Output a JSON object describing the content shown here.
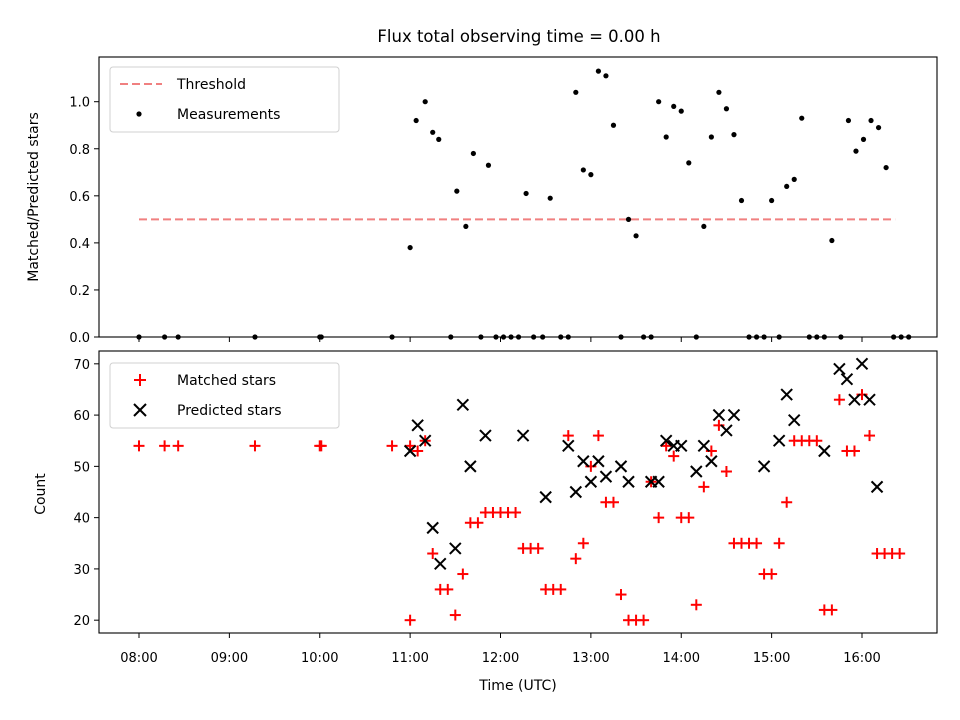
{
  "chart_data": [
    {
      "type": "scatter",
      "title": "Flux total observing time = 0.00 h",
      "xlabel": "",
      "ylabel": "Matched/Predicted stars",
      "xlim": [
        "07:44",
        "16:30"
      ],
      "ylim": [
        0,
        1.19
      ],
      "yticks": [
        "0.0",
        "0.2",
        "0.4",
        "0.6",
        "0.8",
        "1.0"
      ],
      "grid": false,
      "legend_position": "upper-left",
      "threshold": {
        "name": "Threshold",
        "value": 0.5,
        "x_start": "08:00",
        "x_end": "16:22",
        "color": "#f08080",
        "style": "dashed"
      },
      "series": [
        {
          "name": "Measurements",
          "marker": "dot",
          "color": "#000000",
          "points": [
            [
              "08:00",
              0
            ],
            [
              "08:17",
              0
            ],
            [
              "08:26",
              0
            ],
            [
              "09:17",
              0
            ],
            [
              "10:00",
              0
            ],
            [
              "10:01",
              0
            ],
            [
              "10:48",
              0
            ],
            [
              "11:00",
              0.38
            ],
            [
              "11:04",
              0.92
            ],
            [
              "11:10",
              1.0
            ],
            [
              "11:15",
              0.87
            ],
            [
              "11:19",
              0.84
            ],
            [
              "11:27",
              0
            ],
            [
              "11:31",
              0.62
            ],
            [
              "11:37",
              0.47
            ],
            [
              "11:42",
              0.78
            ],
            [
              "11:47",
              0
            ],
            [
              "11:52",
              0.73
            ],
            [
              "11:57",
              0
            ],
            [
              "12:02",
              0
            ],
            [
              "12:07",
              0
            ],
            [
              "12:12",
              0
            ],
            [
              "12:17",
              0.61
            ],
            [
              "12:22",
              0
            ],
            [
              "12:28",
              0
            ],
            [
              "12:33",
              0.59
            ],
            [
              "12:40",
              0
            ],
            [
              "12:45",
              0
            ],
            [
              "12:50",
              1.04
            ],
            [
              "12:55",
              0.71
            ],
            [
              "13:00",
              0.69
            ],
            [
              "13:05",
              1.13
            ],
            [
              "13:10",
              1.11
            ],
            [
              "13:15",
              0.9
            ],
            [
              "13:20",
              0
            ],
            [
              "13:25",
              0.5
            ],
            [
              "13:30",
              0.43
            ],
            [
              "13:35",
              0
            ],
            [
              "13:40",
              0
            ],
            [
              "13:45",
              1.0
            ],
            [
              "13:50",
              0.85
            ],
            [
              "13:55",
              0.98
            ],
            [
              "14:00",
              0.96
            ],
            [
              "14:05",
              0.74
            ],
            [
              "14:10",
              0
            ],
            [
              "14:15",
              0.47
            ],
            [
              "14:20",
              0.85
            ],
            [
              "14:25",
              1.04
            ],
            [
              "14:30",
              0.97
            ],
            [
              "14:35",
              0.86
            ],
            [
              "14:40",
              0.58
            ],
            [
              "14:45",
              0
            ],
            [
              "14:50",
              0
            ],
            [
              "14:55",
              0
            ],
            [
              "15:00",
              0.58
            ],
            [
              "15:05",
              0
            ],
            [
              "15:10",
              0.64
            ],
            [
              "15:15",
              0.67
            ],
            [
              "15:20",
              0.93
            ],
            [
              "15:25",
              0
            ],
            [
              "15:30",
              0
            ],
            [
              "15:35",
              0
            ],
            [
              "15:40",
              0.41
            ],
            [
              "15:46",
              0
            ],
            [
              "15:51",
              0.92
            ],
            [
              "15:56",
              0.79
            ],
            [
              "16:01",
              0.84
            ],
            [
              "16:06",
              0.92
            ],
            [
              "16:11",
              0.89
            ],
            [
              "16:16",
              0.72
            ],
            [
              "16:21",
              0
            ],
            [
              "16:26",
              0
            ],
            [
              "16:31",
              0
            ]
          ]
        }
      ]
    },
    {
      "type": "scatter",
      "title": "",
      "xlabel": "Time (UTC)",
      "ylabel": "Count",
      "xlim": [
        "07:44",
        "16:30"
      ],
      "ylim": [
        17.5,
        72.5
      ],
      "xticks": [
        "08:00",
        "09:00",
        "10:00",
        "11:00",
        "12:00",
        "13:00",
        "14:00",
        "15:00",
        "16:00"
      ],
      "yticks": [
        "20",
        "30",
        "40",
        "50",
        "60",
        "70"
      ],
      "grid": false,
      "legend_position": "upper-left",
      "series": [
        {
          "name": "Matched stars",
          "marker": "plus",
          "color": "#ff0000",
          "points": [
            [
              "08:00",
              54
            ],
            [
              "08:17",
              54
            ],
            [
              "08:26",
              54
            ],
            [
              "09:17",
              54
            ],
            [
              "10:00",
              54
            ],
            [
              "10:01",
              54
            ],
            [
              "10:48",
              54
            ],
            [
              "11:00",
              20
            ],
            [
              "11:00",
              54
            ],
            [
              "11:05",
              53
            ],
            [
              "11:10",
              55
            ],
            [
              "11:15",
              33
            ],
            [
              "11:20",
              26
            ],
            [
              "11:25",
              26
            ],
            [
              "11:30",
              21
            ],
            [
              "11:35",
              29
            ],
            [
              "11:40",
              39
            ],
            [
              "11:45",
              39
            ],
            [
              "11:50",
              41
            ],
            [
              "11:55",
              41
            ],
            [
              "12:00",
              41
            ],
            [
              "12:05",
              41
            ],
            [
              "12:10",
              41
            ],
            [
              "12:15",
              34
            ],
            [
              "12:20",
              34
            ],
            [
              "12:25",
              34
            ],
            [
              "12:30",
              26
            ],
            [
              "12:35",
              26
            ],
            [
              "12:40",
              26
            ],
            [
              "12:45",
              56
            ],
            [
              "12:50",
              32
            ],
            [
              "12:55",
              35
            ],
            [
              "13:00",
              50
            ],
            [
              "13:05",
              56
            ],
            [
              "13:10",
              43
            ],
            [
              "13:15",
              43
            ],
            [
              "13:20",
              25
            ],
            [
              "13:25",
              20
            ],
            [
              "13:30",
              20
            ],
            [
              "13:35",
              20
            ],
            [
              "13:40",
              47
            ],
            [
              "13:45",
              40
            ],
            [
              "13:50",
              54
            ],
            [
              "13:55",
              52
            ],
            [
              "14:00",
              40
            ],
            [
              "14:05",
              40
            ],
            [
              "14:10",
              23
            ],
            [
              "14:15",
              46
            ],
            [
              "14:20",
              53
            ],
            [
              "14:25",
              58
            ],
            [
              "14:30",
              49
            ],
            [
              "14:35",
              35
            ],
            [
              "14:40",
              35
            ],
            [
              "14:45",
              35
            ],
            [
              "14:50",
              35
            ],
            [
              "14:55",
              29
            ],
            [
              "15:00",
              29
            ],
            [
              "15:05",
              35
            ],
            [
              "15:10",
              43
            ],
            [
              "15:15",
              55
            ],
            [
              "15:20",
              55
            ],
            [
              "15:25",
              55
            ],
            [
              "15:30",
              55
            ],
            [
              "15:35",
              22
            ],
            [
              "15:40",
              22
            ],
            [
              "15:45",
              63
            ],
            [
              "15:50",
              53
            ],
            [
              "15:55",
              53
            ],
            [
              "16:00",
              64
            ],
            [
              "16:05",
              56
            ],
            [
              "16:10",
              33
            ],
            [
              "16:15",
              33
            ],
            [
              "16:20",
              33
            ],
            [
              "16:25",
              33
            ]
          ]
        },
        {
          "name": "Predicted stars",
          "marker": "x",
          "color": "#000000",
          "points": [
            [
              "11:00",
              53
            ],
            [
              "11:05",
              58
            ],
            [
              "11:10",
              55
            ],
            [
              "11:15",
              38
            ],
            [
              "11:20",
              31
            ],
            [
              "11:30",
              34
            ],
            [
              "11:35",
              62
            ],
            [
              "11:40",
              50
            ],
            [
              "11:50",
              56
            ],
            [
              "12:15",
              56
            ],
            [
              "12:30",
              44
            ],
            [
              "12:45",
              54
            ],
            [
              "12:50",
              45
            ],
            [
              "12:55",
              51
            ],
            [
              "13:00",
              47
            ],
            [
              "13:05",
              51
            ],
            [
              "13:10",
              48
            ],
            [
              "13:20",
              50
            ],
            [
              "13:25",
              47
            ],
            [
              "13:40",
              47
            ],
            [
              "13:45",
              47
            ],
            [
              "13:50",
              55
            ],
            [
              "13:55",
              54
            ],
            [
              "14:00",
              54
            ],
            [
              "14:10",
              49
            ],
            [
              "14:15",
              54
            ],
            [
              "14:20",
              51
            ],
            [
              "14:25",
              60
            ],
            [
              "14:30",
              57
            ],
            [
              "14:35",
              60
            ],
            [
              "14:55",
              50
            ],
            [
              "15:05",
              55
            ],
            [
              "15:10",
              64
            ],
            [
              "15:15",
              59
            ],
            [
              "15:35",
              53
            ],
            [
              "15:45",
              69
            ],
            [
              "15:50",
              67
            ],
            [
              "15:55",
              63
            ],
            [
              "16:00",
              70
            ],
            [
              "16:05",
              63
            ],
            [
              "16:10",
              46
            ]
          ]
        }
      ]
    }
  ]
}
